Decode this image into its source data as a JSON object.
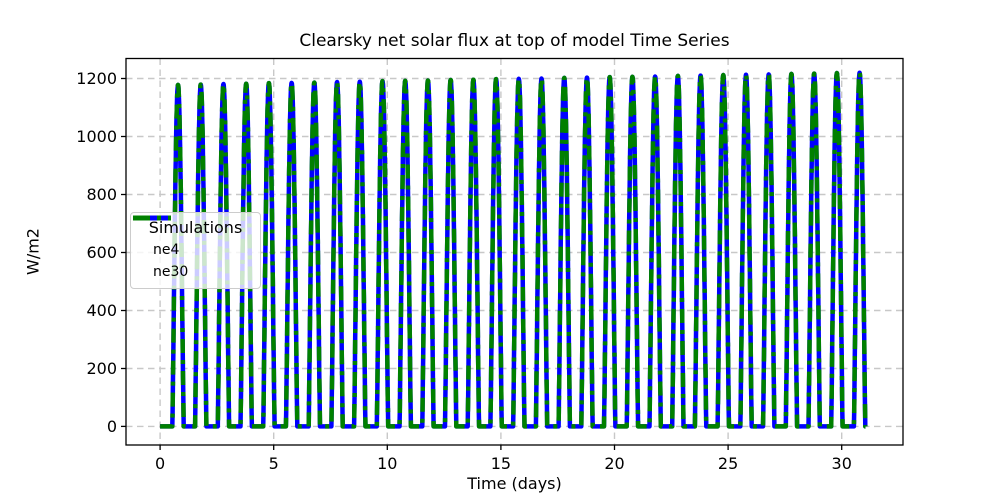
{
  "chart_data": {
    "type": "line",
    "title": "Clearsky net solar flux at top of model Time Series",
    "xlabel": "Time (days)",
    "ylabel": "W/m2",
    "xlim": [
      -1.5,
      32.7
    ],
    "ylim": [
      -64,
      1269
    ],
    "xticks": [
      0,
      5,
      10,
      15,
      20,
      25,
      30
    ],
    "yticks": [
      0,
      200,
      400,
      600,
      800,
      1000,
      1200
    ],
    "grid": true,
    "grid_style": "dashed",
    "grid_color": "#c8c8c8",
    "legend_position": "center left",
    "legend": {
      "title": "Simulations",
      "items": [
        {
          "label": "ne4",
          "color": "#0000ff",
          "linestyle": "solid"
        },
        {
          "label": "ne30",
          "color": "#008000",
          "linestyle": "dashdot"
        }
      ]
    },
    "diurnal_model": {
      "days": 31,
      "peak_time_of_day": 0.79,
      "daylight_fraction": 0.5,
      "shape_exponent": 1.15,
      "night_value": 0
    },
    "series": [
      {
        "name": "ne4",
        "color": "#0000ff",
        "linestyle": "solid",
        "linewidth": 4.5,
        "daily_peaks": [
          1178,
          1179,
          1181,
          1182,
          1184,
          1185,
          1186,
          1188,
          1189,
          1191,
          1192,
          1193,
          1195,
          1196,
          1198,
          1199,
          1200,
          1202,
          1203,
          1205,
          1206,
          1207,
          1209,
          1210,
          1212,
          1213,
          1214,
          1216,
          1217,
          1219,
          1220
        ]
      },
      {
        "name": "ne30",
        "color": "#008000",
        "linestyle": "dashdot",
        "linewidth": 4.5,
        "daily_peaks": [
          1178,
          1179,
          1181,
          1182,
          1184,
          1185,
          1186,
          1188,
          1189,
          1191,
          1192,
          1193,
          1195,
          1196,
          1198,
          1199,
          1200,
          1202,
          1203,
          1205,
          1206,
          1207,
          1209,
          1210,
          1212,
          1213,
          1214,
          1216,
          1217,
          1219,
          1220
        ]
      }
    ]
  },
  "colors": {
    "background": "#ffffff",
    "spine": "#000000",
    "text": "#000000",
    "grid": "#c8c8c8",
    "ne4": "#0000ff",
    "ne30": "#008000"
  }
}
